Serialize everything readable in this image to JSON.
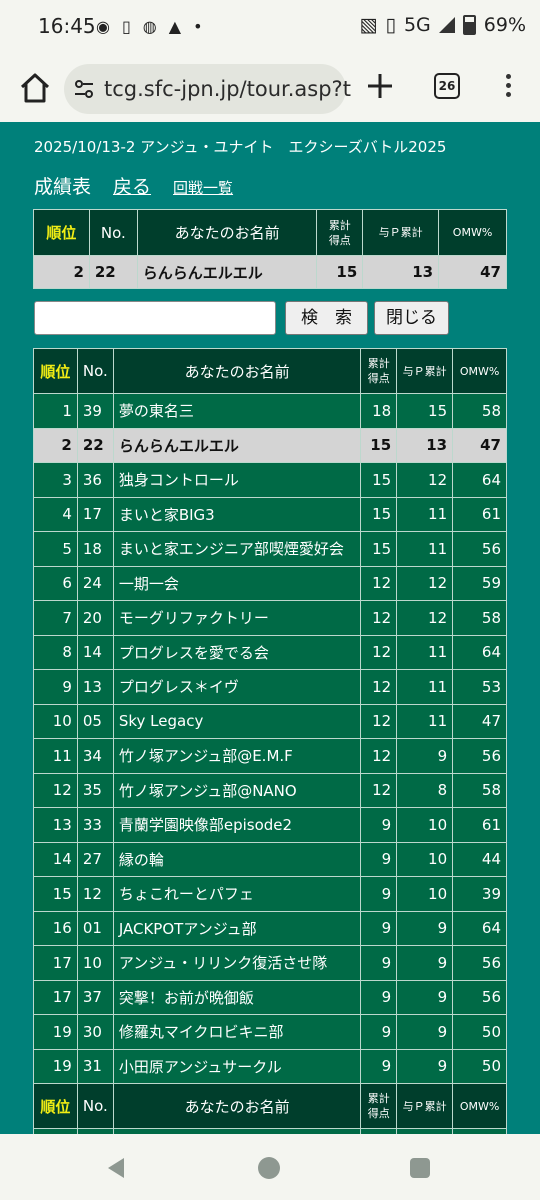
{
  "status_bar": {
    "time": "16:45",
    "network": "5G",
    "battery": "69%"
  },
  "browser": {
    "url": "tcg.sfc-jpn.jp/tour.asp?t",
    "tab_count": "26"
  },
  "page": {
    "event_title": "2025/10/13-2 アンジュ・ユナイト　エクシーズバトル2025",
    "nav": {
      "title": "成績表",
      "back": "戻る",
      "rounds": "回戦一覧"
    },
    "headers": {
      "rank": "順位",
      "no": "No.",
      "name": "あなたのお名前",
      "points_line1": "累計",
      "points_line2": "得点",
      "yp": "与Ｐ累計",
      "omw": "OMW%"
    },
    "my_result": {
      "rank": "2",
      "no": "22",
      "name": "らんらんエルエル",
      "points": "15",
      "yp": "13",
      "omw": "47"
    },
    "search": {
      "search_button": "検　索",
      "close_button": "閉じる"
    },
    "rows": [
      {
        "rank": "1",
        "no": "39",
        "name": "夢の東名三",
        "points": "18",
        "yp": "15",
        "omw": "58"
      },
      {
        "rank": "2",
        "no": "22",
        "name": "らんらんエルエル",
        "points": "15",
        "yp": "13",
        "omw": "47"
      },
      {
        "rank": "3",
        "no": "36",
        "name": "独身コントロール",
        "points": "15",
        "yp": "12",
        "omw": "64"
      },
      {
        "rank": "4",
        "no": "17",
        "name": "まいと家BIG3",
        "points": "15",
        "yp": "11",
        "omw": "61"
      },
      {
        "rank": "5",
        "no": "18",
        "name": "まいと家エンジニア部喫煙愛好会",
        "points": "15",
        "yp": "11",
        "omw": "56"
      },
      {
        "rank": "6",
        "no": "24",
        "name": "一期一会",
        "points": "12",
        "yp": "12",
        "omw": "59"
      },
      {
        "rank": "7",
        "no": "20",
        "name": "モーグリファクトリー",
        "points": "12",
        "yp": "12",
        "omw": "58"
      },
      {
        "rank": "8",
        "no": "14",
        "name": "プログレスを愛でる会",
        "points": "12",
        "yp": "11",
        "omw": "64"
      },
      {
        "rank": "9",
        "no": "13",
        "name": "プログレス＊イヴ",
        "points": "12",
        "yp": "11",
        "omw": "53"
      },
      {
        "rank": "10",
        "no": "05",
        "name": "Sky Legacy",
        "points": "12",
        "yp": "11",
        "omw": "47"
      },
      {
        "rank": "11",
        "no": "34",
        "name": "竹ノ塚アンジュ部@E.M.F",
        "points": "12",
        "yp": "9",
        "omw": "56"
      },
      {
        "rank": "12",
        "no": "35",
        "name": "竹ノ塚アンジュ部@NANO",
        "points": "12",
        "yp": "8",
        "omw": "58"
      },
      {
        "rank": "13",
        "no": "33",
        "name": "青蘭学園映像部episode2",
        "points": "9",
        "yp": "10",
        "omw": "61"
      },
      {
        "rank": "14",
        "no": "27",
        "name": "縁の輪",
        "points": "9",
        "yp": "10",
        "omw": "44"
      },
      {
        "rank": "15",
        "no": "12",
        "name": "ちょこれーとパフェ",
        "points": "9",
        "yp": "10",
        "omw": "39"
      },
      {
        "rank": "16",
        "no": "01",
        "name": "JACKPOTアンジュ部",
        "points": "9",
        "yp": "9",
        "omw": "64"
      },
      {
        "rank": "17",
        "no": "10",
        "name": "アンジュ・リリンク復活させ隊",
        "points": "9",
        "yp": "9",
        "omw": "56"
      },
      {
        "rank": "17",
        "no": "37",
        "name": "突撃！お前が晩御飯",
        "points": "9",
        "yp": "9",
        "omw": "56"
      },
      {
        "rank": "19",
        "no": "30",
        "name": "修羅丸マイクロビキニ部",
        "points": "9",
        "yp": "9",
        "omw": "50"
      },
      {
        "rank": "19",
        "no": "31",
        "name": "小田原アンジュサークル",
        "points": "9",
        "yp": "9",
        "omw": "50"
      }
    ],
    "highlight_no": "22",
    "colors": {
      "page_bg": "#00807a",
      "header_bg": "#003e2c",
      "row_bg": "#006a46",
      "highlight_bg": "#d4d4d4",
      "rank_header": "#f2ee14"
    }
  }
}
